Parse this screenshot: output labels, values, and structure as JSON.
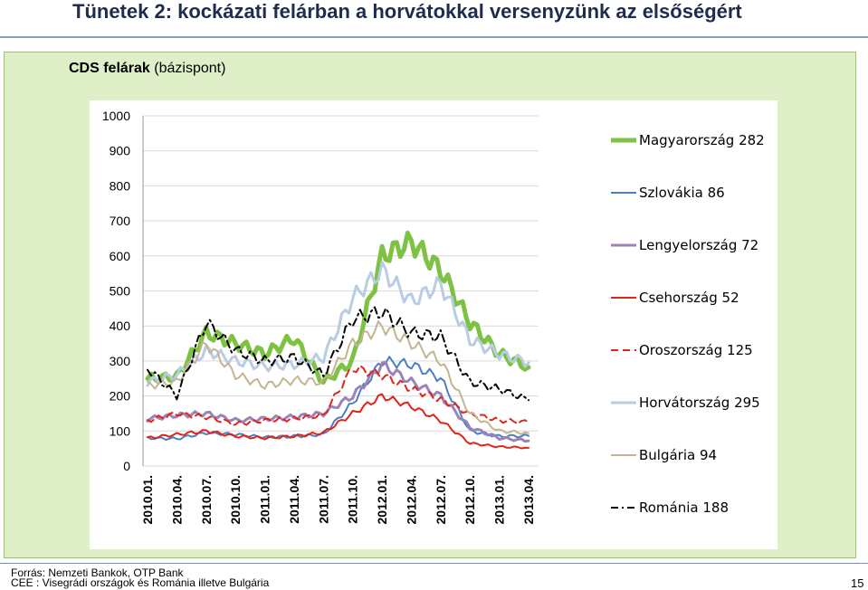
{
  "page": {
    "title": "Tünetek 2: kockázati felárban a horvátokkal versenyzünk az elsőségért",
    "subtitle_bold": "CDS felárak",
    "subtitle_rest": " (bázispont)",
    "source": "Forrás: Nemzeti Bankok, OTP Bank",
    "note": "CEE : Visegrádi országok és Románia illetve Bulgária",
    "page_number": "15"
  },
  "chart_data": {
    "type": "line",
    "title": "CDS felárak (bázispont)",
    "ylim": [
      0,
      1000
    ],
    "yticks": [
      "0",
      "100",
      "200",
      "300",
      "400",
      "500",
      "600",
      "700",
      "800",
      "900",
      "1000"
    ],
    "x": [
      "2010.01.",
      "2010.04.",
      "2010.07.",
      "2010.10.",
      "2011.01.",
      "2011.04.",
      "2011.07.",
      "2011.10.",
      "2012.01.",
      "2012.04.",
      "2012.07.",
      "2012.10.",
      "2013.01.",
      "2013.04."
    ],
    "grid": true,
    "legend_position": "right",
    "series": [
      {
        "name": "Magyarország 282",
        "color": "#7dc242",
        "width": 5,
        "dash": "",
        "values": [
          250,
          255,
          380,
          350,
          320,
          365,
          240,
          300,
          600,
          640,
          560,
          410,
          320,
          282
        ]
      },
      {
        "name": "Szlovákia 86",
        "color": "#4a7fc1",
        "width": 2,
        "dash": "",
        "values": [
          80,
          78,
          95,
          90,
          82,
          85,
          90,
          180,
          300,
          290,
          250,
          100,
          85,
          86
        ]
      },
      {
        "name": "Lengyelország 72",
        "color": "#9b83b8",
        "width": 3,
        "dash": "",
        "values": [
          135,
          145,
          150,
          130,
          135,
          140,
          150,
          200,
          290,
          240,
          200,
          110,
          80,
          72
        ]
      },
      {
        "name": "Csehország 52",
        "color": "#e2231a",
        "width": 2,
        "dash": "",
        "values": [
          80,
          90,
          100,
          85,
          80,
          85,
          95,
          150,
          200,
          170,
          130,
          65,
          55,
          52
        ]
      },
      {
        "name": "Oroszország 125",
        "color": "#e2231a",
        "width": 2,
        "dash": "8,5",
        "values": [
          130,
          150,
          140,
          120,
          130,
          135,
          145,
          280,
          260,
          220,
          190,
          150,
          130,
          125
        ]
      },
      {
        "name": "Horvátország 295",
        "color": "#b8cce4",
        "width": 3,
        "dash": "",
        "values": [
          240,
          260,
          330,
          300,
          285,
          290,
          310,
          480,
          560,
          470,
          520,
          360,
          320,
          295
        ]
      },
      {
        "name": "Bulgária 94",
        "color": "#c4b591",
        "width": 2,
        "dash": "",
        "values": [
          230,
          240,
          350,
          260,
          230,
          245,
          240,
          350,
          400,
          350,
          300,
          150,
          100,
          94
        ]
      },
      {
        "name": "Románia 188",
        "color": "#000000",
        "width": 2,
        "dash": "8,4,2,4",
        "values": [
          280,
          200,
          410,
          330,
          300,
          310,
          260,
          420,
          440,
          380,
          370,
          240,
          220,
          188
        ]
      }
    ]
  }
}
